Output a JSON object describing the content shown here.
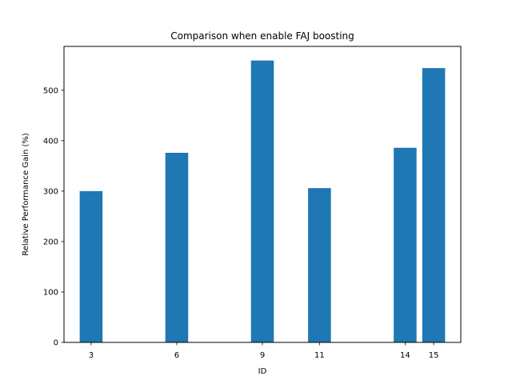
{
  "chart_data": {
    "type": "bar",
    "title": "Comparison when enable FAJ boosting",
    "xlabel": "ID",
    "ylabel": "Relative Performance Gain (%)",
    "x": [
      3,
      6,
      9,
      11,
      14,
      15
    ],
    "values": [
      300,
      376,
      559,
      306,
      386,
      544
    ],
    "x_ticks": [
      "3",
      "6",
      "9",
      "11",
      "14",
      "15"
    ],
    "xlim": [
      2.05,
      15.95
    ],
    "ylim": [
      0,
      587
    ],
    "y_ticks": [
      0,
      100,
      200,
      300,
      400,
      500
    ],
    "bar_color": "#1f77b4",
    "grid": false,
    "legend": "none"
  }
}
